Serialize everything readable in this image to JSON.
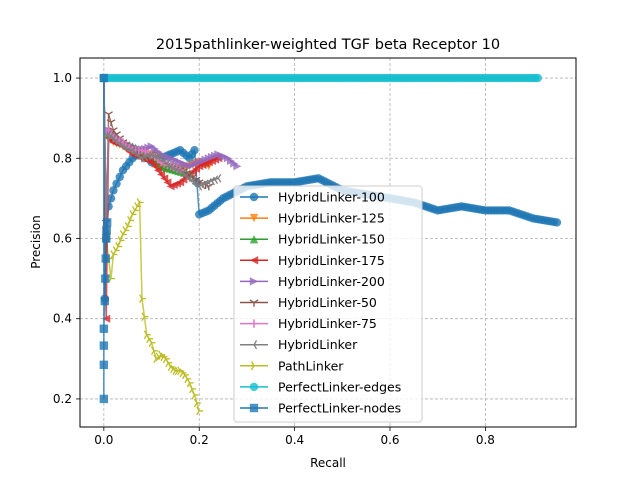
{
  "chart_data": {
    "type": "line",
    "title": "2015pathlinker-weighted TGF beta Receptor 10",
    "xlabel": "Recall",
    "ylabel": "Precision",
    "xlim": [
      -0.05,
      0.99
    ],
    "ylim": [
      0.13,
      1.05
    ],
    "xticks": [
      0.0,
      0.2,
      0.4,
      0.6,
      0.8
    ],
    "xtick_labels": [
      "0.0",
      "0.2",
      "0.4",
      "0.6",
      "0.8"
    ],
    "yticks": [
      0.2,
      0.4,
      0.6,
      0.8,
      1.0
    ],
    "ytick_labels": [
      "0.2",
      "0.4",
      "0.6",
      "0.8",
      "1.0"
    ],
    "grid": true,
    "legend_position": "center-right",
    "series": [
      {
        "name": "HybridLinker-100",
        "color": "#1f77b4",
        "marker": "circle",
        "x": [
          0.0,
          0.002,
          0.005,
          0.01,
          0.02,
          0.04,
          0.06,
          0.08,
          0.1,
          0.12,
          0.14,
          0.16,
          0.18,
          0.19,
          0.2,
          0.22,
          0.25,
          0.3,
          0.35,
          0.4,
          0.45,
          0.5,
          0.55,
          0.6,
          0.65,
          0.7,
          0.75,
          0.8,
          0.85,
          0.9,
          0.95
        ],
        "y": [
          1.0,
          0.45,
          0.6,
          0.68,
          0.72,
          0.77,
          0.8,
          0.82,
          0.79,
          0.8,
          0.81,
          0.82,
          0.8,
          0.82,
          0.66,
          0.67,
          0.7,
          0.73,
          0.74,
          0.74,
          0.75,
          0.72,
          0.71,
          0.7,
          0.69,
          0.67,
          0.68,
          0.67,
          0.67,
          0.65,
          0.64
        ]
      },
      {
        "name": "HybridLinker-125",
        "color": "#ff7f0e",
        "marker": "triangle-down",
        "x": [
          0.0,
          0.005,
          0.01,
          0.02,
          0.04,
          0.06,
          0.08,
          0.1,
          0.12,
          0.15,
          0.18,
          0.2,
          0.22
        ],
        "y": [
          1.0,
          0.6,
          0.85,
          0.84,
          0.83,
          0.82,
          0.8,
          0.81,
          0.78,
          0.77,
          0.78,
          0.79,
          0.78
        ]
      },
      {
        "name": "HybridLinker-150",
        "color": "#2ca02c",
        "marker": "triangle-up",
        "x": [
          0.0,
          0.005,
          0.01,
          0.02,
          0.04,
          0.06,
          0.08,
          0.1,
          0.12,
          0.15,
          0.18
        ],
        "y": [
          1.0,
          0.62,
          0.86,
          0.85,
          0.84,
          0.83,
          0.82,
          0.8,
          0.78,
          0.77,
          0.76
        ]
      },
      {
        "name": "HybridLinker-175",
        "color": "#d62728",
        "marker": "triangle-left",
        "x": [
          0.0,
          0.005,
          0.01,
          0.02,
          0.04,
          0.06,
          0.08,
          0.1,
          0.12,
          0.14,
          0.16,
          0.18,
          0.2,
          0.22,
          0.24
        ],
        "y": [
          1.0,
          0.4,
          0.85,
          0.84,
          0.83,
          0.81,
          0.8,
          0.79,
          0.76,
          0.73,
          0.74,
          0.76,
          0.78,
          0.79,
          0.8
        ]
      },
      {
        "name": "HybridLinker-200",
        "color": "#9467bd",
        "marker": "triangle-right",
        "x": [
          0.0,
          0.005,
          0.01,
          0.02,
          0.04,
          0.06,
          0.08,
          0.1,
          0.12,
          0.14,
          0.16,
          0.18,
          0.2,
          0.22,
          0.24,
          0.26,
          0.28
        ],
        "y": [
          1.0,
          0.62,
          0.87,
          0.86,
          0.84,
          0.83,
          0.82,
          0.83,
          0.81,
          0.8,
          0.79,
          0.78,
          0.79,
          0.8,
          0.81,
          0.8,
          0.78
        ]
      },
      {
        "name": "HybridLinker-50",
        "color": "#8c564b",
        "marker": "tri-down",
        "x": [
          0.0,
          0.005,
          0.01,
          0.02,
          0.04,
          0.06,
          0.08,
          0.1,
          0.12,
          0.14,
          0.16,
          0.18,
          0.2,
          0.22
        ],
        "y": [
          1.0,
          0.64,
          0.91,
          0.87,
          0.84,
          0.82,
          0.8,
          0.81,
          0.79,
          0.78,
          0.77,
          0.76,
          0.74,
          0.73
        ]
      },
      {
        "name": "HybridLinker-75",
        "color": "#e377c2",
        "marker": "plus",
        "x": [
          0.0,
          0.005,
          0.01,
          0.02,
          0.04,
          0.06,
          0.08,
          0.1,
          0.12,
          0.14,
          0.16
        ],
        "y": [
          1.0,
          0.63,
          0.87,
          0.85,
          0.84,
          0.82,
          0.82,
          0.81,
          0.79,
          0.78,
          0.77
        ]
      },
      {
        "name": "HybridLinker",
        "color": "#7f7f7f",
        "marker": "tri-left",
        "x": [
          0.0,
          0.005,
          0.01,
          0.02,
          0.04,
          0.06,
          0.08,
          0.1,
          0.12,
          0.14,
          0.16,
          0.18,
          0.2,
          0.22,
          0.24
        ],
        "y": [
          1.0,
          0.6,
          0.86,
          0.85,
          0.83,
          0.82,
          0.8,
          0.81,
          0.8,
          0.78,
          0.77,
          0.75,
          0.73,
          0.74,
          0.75
        ]
      },
      {
        "name": "PathLinker",
        "color": "#bcbd22",
        "marker": "tri-right",
        "x": [
          0.0,
          0.005,
          0.01,
          0.015,
          0.02,
          0.03,
          0.04,
          0.05,
          0.06,
          0.07,
          0.075,
          0.08,
          0.09,
          0.1,
          0.11,
          0.12,
          0.13,
          0.14,
          0.15,
          0.16,
          0.17,
          0.18,
          0.19,
          0.2
        ],
        "y": [
          1.0,
          0.6,
          0.55,
          0.5,
          0.56,
          0.58,
          0.61,
          0.63,
          0.66,
          0.68,
          0.69,
          0.45,
          0.36,
          0.34,
          0.3,
          0.31,
          0.3,
          0.28,
          0.27,
          0.27,
          0.26,
          0.24,
          0.21,
          0.17
        ]
      },
      {
        "name": "PerfectLinker-edges",
        "color": "#17becf",
        "marker": "circle",
        "x": [
          0.0,
          0.1,
          0.2,
          0.3,
          0.4,
          0.5,
          0.6,
          0.7,
          0.8,
          0.9,
          0.91
        ],
        "y": [
          1.0,
          1.0,
          1.0,
          1.0,
          1.0,
          1.0,
          1.0,
          1.0,
          1.0,
          1.0,
          1.0
        ]
      },
      {
        "name": "PerfectLinker-nodes",
        "color": "#1f77b4",
        "marker": "square",
        "x": [
          0.0,
          0.0,
          0.0,
          0.0,
          0.0,
          0.002,
          0.003,
          0.004,
          0.005,
          0.006,
          0.007
        ],
        "y": [
          1.0,
          0.2,
          0.285,
          0.333,
          0.375,
          0.444,
          0.5,
          0.55,
          0.6,
          0.62,
          0.64
        ]
      }
    ]
  }
}
